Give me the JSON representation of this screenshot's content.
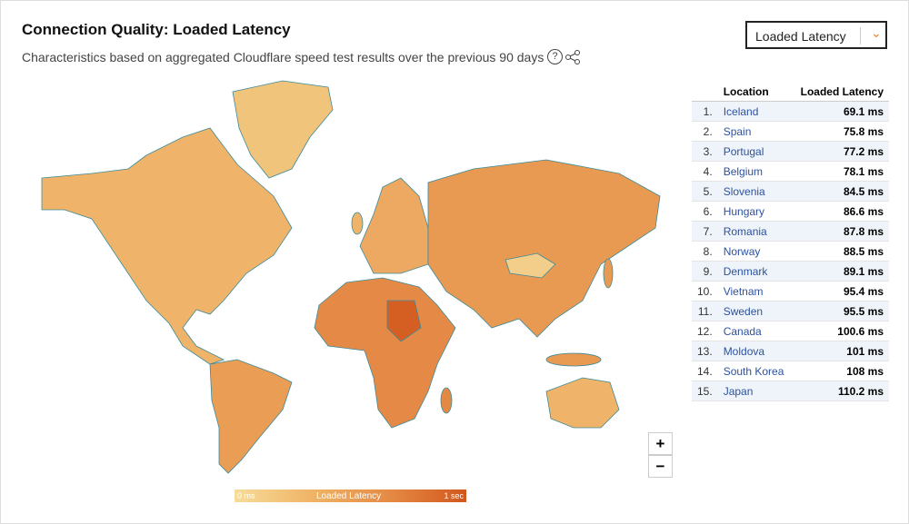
{
  "header": {
    "title": "Connection Quality: Loaded Latency",
    "subtitle": "Characteristics based on aggregated Cloudflare speed test results over the previous 90 days"
  },
  "dropdown": {
    "label": "Loaded Latency"
  },
  "legend": {
    "min": "0 ms",
    "title": "Loaded Latency",
    "max": "1 sec"
  },
  "zoom": {
    "in": "+",
    "out": "−"
  },
  "table": {
    "columns": [
      "Location",
      "Loaded Latency"
    ],
    "rows": [
      [
        "1.",
        "Iceland",
        "69.1 ms"
      ],
      [
        "2.",
        "Spain",
        "75.8 ms"
      ],
      [
        "3.",
        "Portugal",
        "77.2 ms"
      ],
      [
        "4.",
        "Belgium",
        "78.1 ms"
      ],
      [
        "5.",
        "Slovenia",
        "84.5 ms"
      ],
      [
        "6.",
        "Hungary",
        "86.6 ms"
      ],
      [
        "7.",
        "Romania",
        "87.8 ms"
      ],
      [
        "8.",
        "Norway",
        "88.5 ms"
      ],
      [
        "9.",
        "Denmark",
        "89.1 ms"
      ],
      [
        "10.",
        "Vietnam",
        "95.4 ms"
      ],
      [
        "11.",
        "Sweden",
        "95.5 ms"
      ],
      [
        "12.",
        "Canada",
        "100.6 ms"
      ],
      [
        "13.",
        "Moldova",
        "101 ms"
      ],
      [
        "14.",
        "South Korea",
        "108 ms"
      ],
      [
        "15.",
        "Japan",
        "110.2 ms"
      ]
    ]
  }
}
